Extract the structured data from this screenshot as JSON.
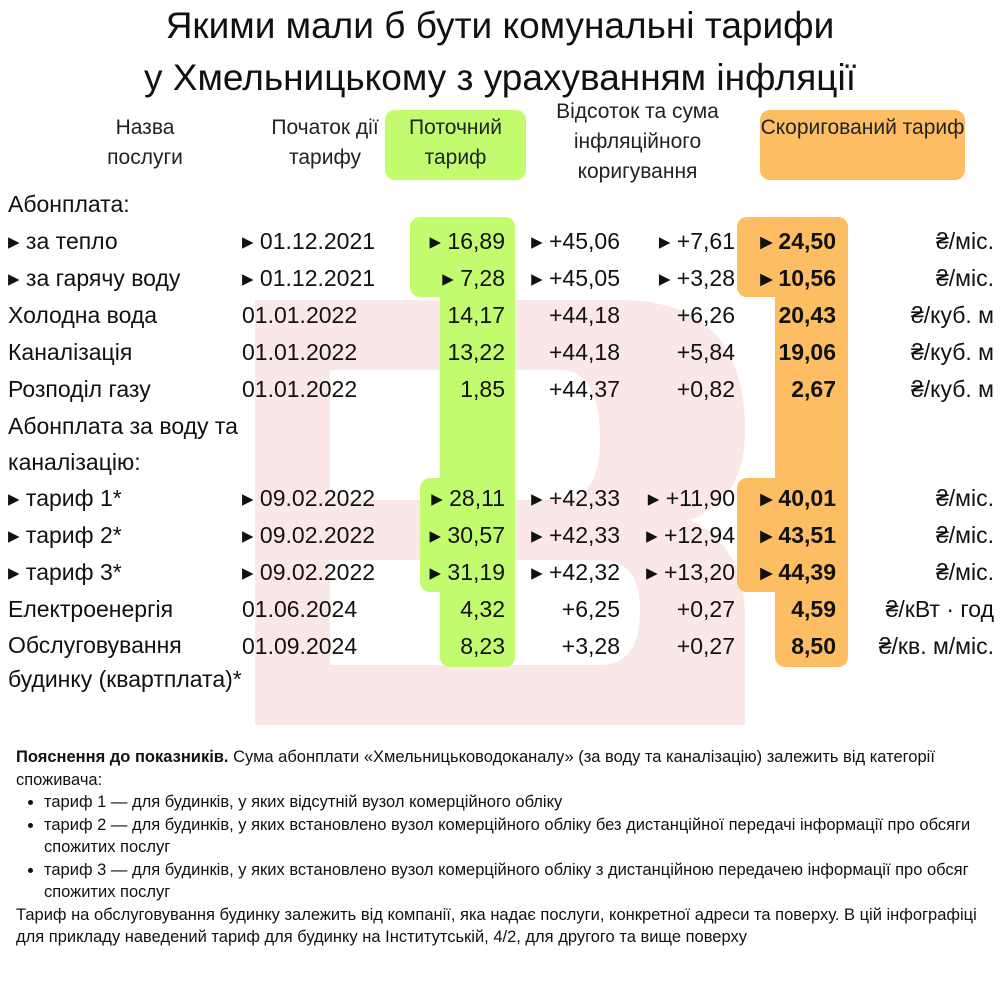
{
  "title": [
    "Якими мали б бути комунальні тарифи",
    "у Хмельницькому з урахуванням інфляції"
  ],
  "headers": {
    "name": "Назва послуги",
    "start": "Початок дії тарифу",
    "current": "Поточний тариф",
    "adjustment": "Відсоток та сума інфляційного коригування",
    "adjusted": "Скоригований тариф"
  },
  "rows": [
    {
      "name": "Абонплата:"
    },
    {
      "name": "▸ за тепло",
      "start": "▸ 01.12.2021",
      "current": "▸ 16,89",
      "pct": "▸ +45,06",
      "sum": "▸ +7,61",
      "adjusted": "▸ 24,50",
      "unit": "₴/міс."
    },
    {
      "name": "▸ за гарячу воду",
      "start": "▸ 01.12.2021",
      "current": "▸ 7,28",
      "pct": "▸ +45,05",
      "sum": "▸ +3,28",
      "adjusted": "▸ 10,56",
      "unit": "₴/міс."
    },
    {
      "name": "Холодна вода",
      "start": "01.01.2022",
      "current": "14,17",
      "pct": "+44,18",
      "sum": "+6,26",
      "adjusted": "20,43",
      "unit": "₴/куб. м"
    },
    {
      "name": "Каналізація",
      "start": "01.01.2022",
      "current": "13,22",
      "pct": "+44,18",
      "sum": "+5,84",
      "adjusted": "19,06",
      "unit": "₴/куб. м"
    },
    {
      "name": "Розподіл газу",
      "start": "01.01.2022",
      "current": "1,85",
      "pct": "+44,37",
      "sum": "+0,82",
      "adjusted": "2,67",
      "unit": "₴/куб. м"
    },
    {
      "name": "Абонплата за воду та каналізацію:"
    },
    {
      "name": "▸ тариф 1*",
      "start": "▸ 09.02.2022",
      "current": "▸ 28,11",
      "pct": "▸ +42,33",
      "sum": "▸ +11,90",
      "adjusted": "▸ 40,01",
      "unit": "₴/міс."
    },
    {
      "name": "▸ тариф 2*",
      "start": "▸ 09.02.2022",
      "current": "▸ 30,57",
      "pct": "▸ +42,33",
      "sum": "▸ +12,94",
      "adjusted": "▸ 43,51",
      "unit": "₴/міс."
    },
    {
      "name": "▸ тариф 3*",
      "start": "▸ 09.02.2022",
      "current": "▸ 31,19",
      "pct": "▸ +42,32",
      "sum": "▸ +13,20",
      "adjusted": "▸ 44,39",
      "unit": "₴/міс."
    },
    {
      "name": "Електроенергія",
      "start": "01.06.2024",
      "current": "4,32",
      "pct": "+6,25",
      "sum": "+0,27",
      "adjusted": "4,59",
      "unit": "₴/кВт · год"
    },
    {
      "name": "Обслуговування будинку (квартплата)*",
      "start": "01.09.2024",
      "current": "8,23",
      "pct": "+3,28",
      "sum": "+0,27",
      "adjusted": "8,50",
      "unit": "₴/кв. м/міс."
    }
  ],
  "notes": {
    "lead": "Пояснення до показників.",
    "intro": " Сума абонплати «Хмельницьководоканалу» (за воду та каналізацію) залежить від категорії споживача:",
    "items": [
      "тариф 1 — для будинків, у яких відсутній вузол комерційного обліку",
      "тариф 2 — для будинків, у яких встановлено вузол комерційного обліку без дистанційної передачі інформації про обсяги спожитих послуг",
      "тариф 3 — для будинків, у яких встановлено вузол комерційного обліку з дистанційною передачею інформації про обсяг спожитих послуг"
    ],
    "outro": "Тариф на обслуговування будинку залежить від компанії, яка надає послуги, конкретної адреси та поверху. В цій інфографіці для прикладу наведений тариф для будинку на Інститутській, 4/2, для другого та вище поверху"
  }
}
